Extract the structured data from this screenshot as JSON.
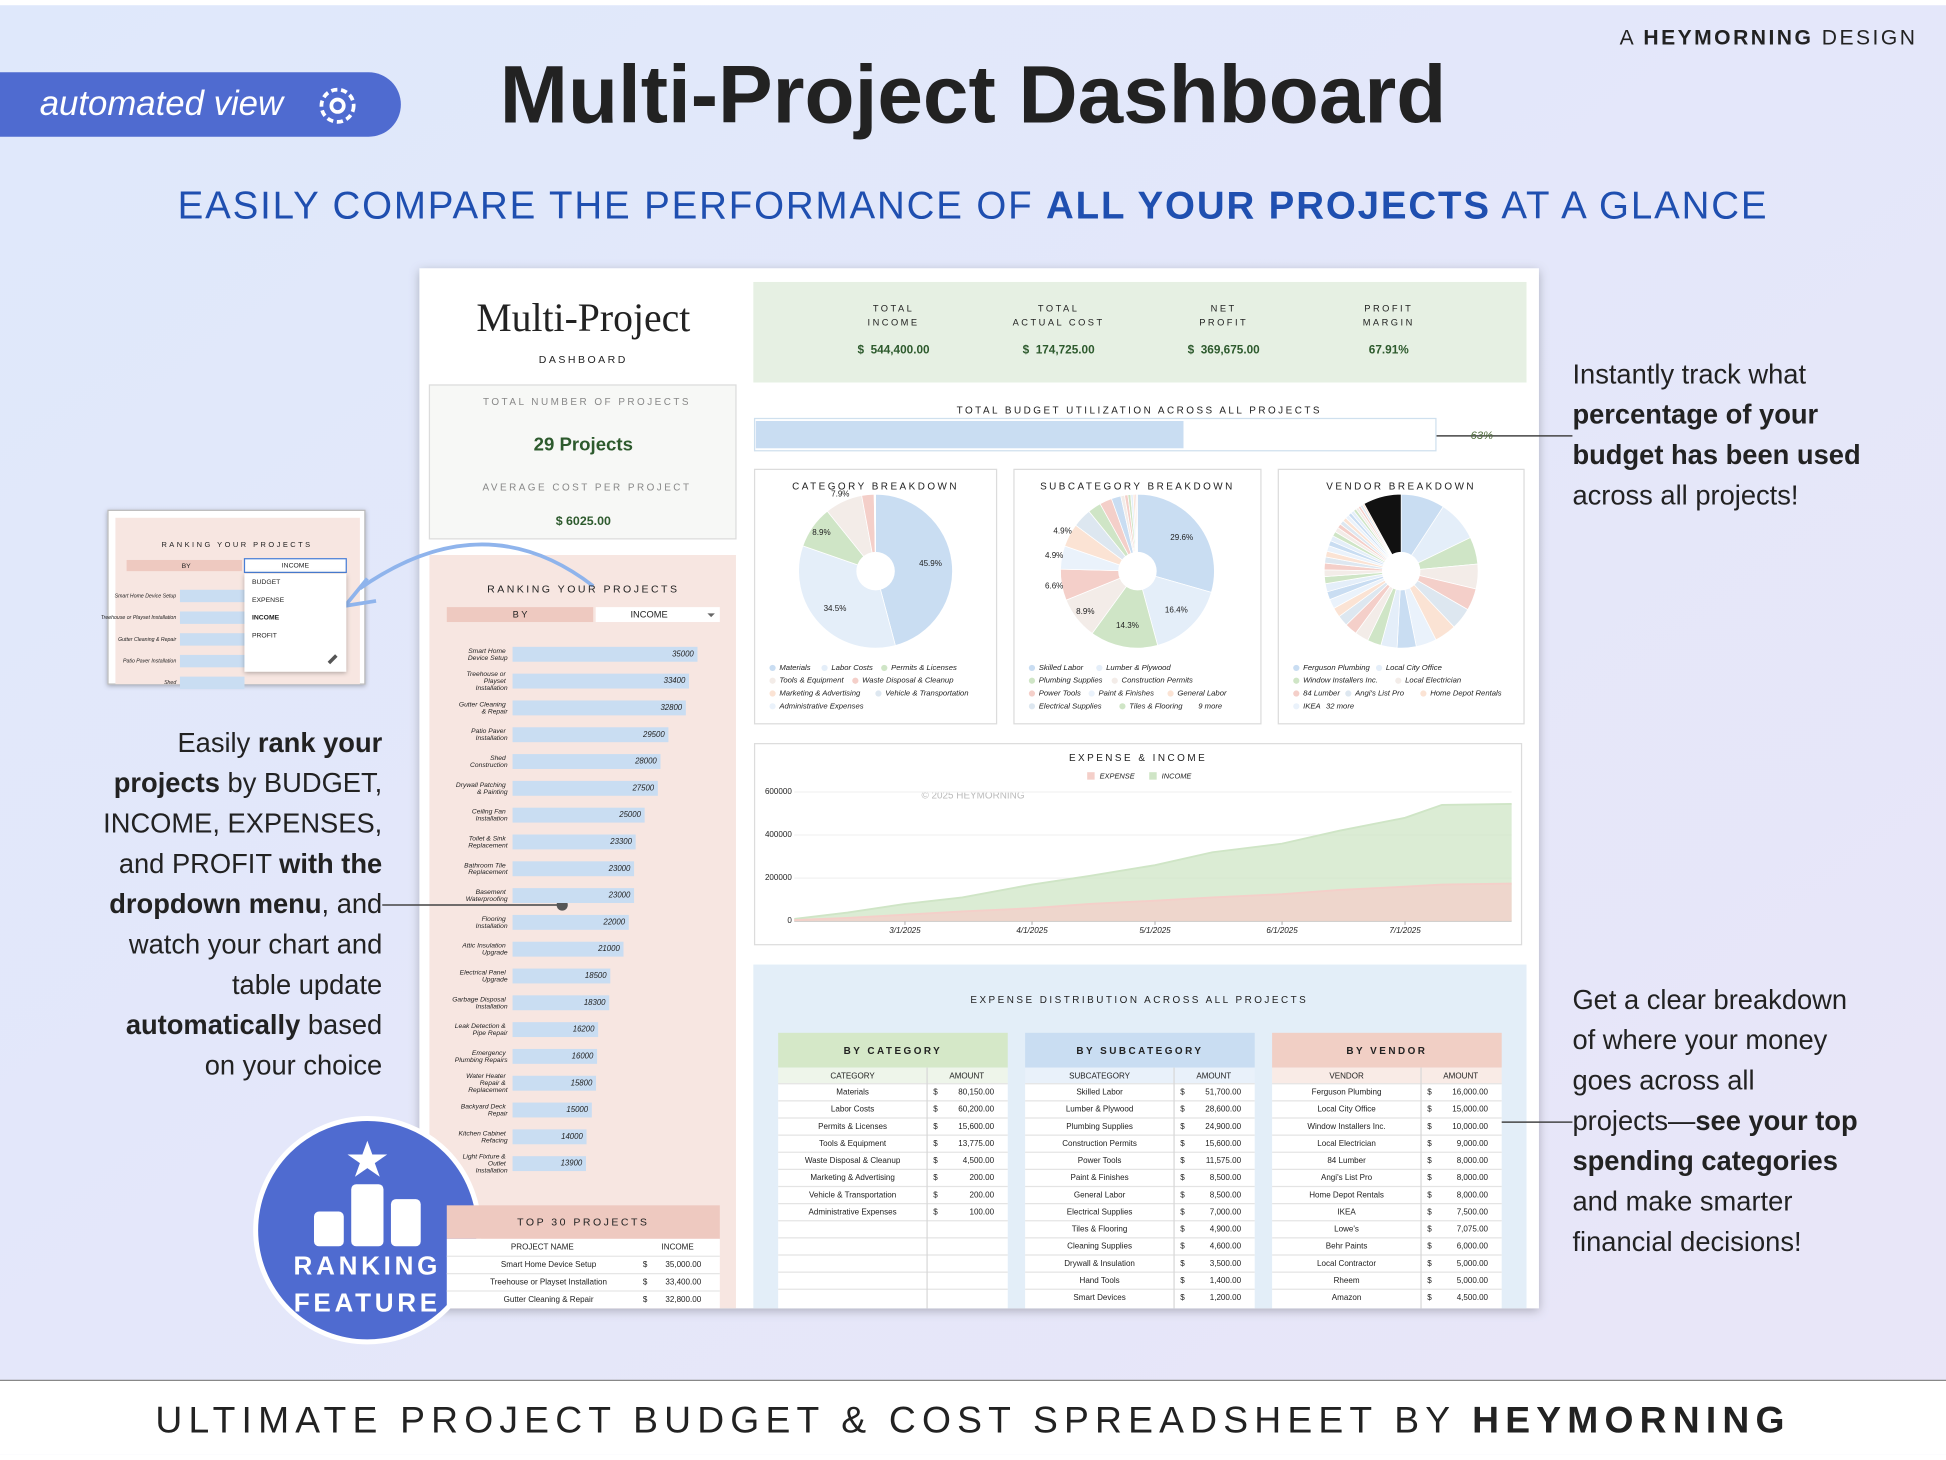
{
  "badge": "automated view",
  "brand": [
    {
      "text": "A "
    },
    {
      "text": "HEYMORNING",
      "bold": true
    },
    {
      "text": " DESIGN"
    }
  ],
  "title": "Multi-Project Dashboard",
  "subtitle": [
    {
      "text": "EASILY COMPARE THE PERFORMANCE OF "
    },
    {
      "text": "ALL YOUR PROJECTS",
      "bold": true
    },
    {
      "text": " AT A GLANCE"
    }
  ],
  "footer": [
    {
      "text": "ULTIMATE PROJECT BUDGET & COST SPREADSHEET BY "
    },
    {
      "text": "HEYMORNING",
      "bold": true
    }
  ],
  "callout_left": [
    [
      {
        "text": "Easily "
      },
      {
        "text": "rank your",
        "bold": true
      }
    ],
    [
      {
        "text": "projects",
        "bold": true
      },
      {
        "text": " by BUDGET,"
      }
    ],
    [
      {
        "text": "INCOME, EXPENSES,"
      }
    ],
    [
      {
        "text": "and PROFIT "
      },
      {
        "text": "with the",
        "bold": true
      }
    ],
    [
      {
        "text": "dropdown menu",
        "bold": true
      },
      {
        "text": ", and"
      }
    ],
    [
      {
        "text": "watch your chart and"
      }
    ],
    [
      {
        "text": "table update"
      }
    ],
    [
      {
        "text": "automatically",
        "bold": true
      },
      {
        "text": " based"
      }
    ],
    [
      {
        "text": "on your choice"
      }
    ]
  ],
  "callout_right_top": [
    [
      {
        "text": "Instantly track what"
      }
    ],
    [
      {
        "text": "percentage of your",
        "bold": true
      }
    ],
    [
      {
        "text": "budget has been used",
        "bold": true
      }
    ],
    [
      {
        "text": "across all projects!"
      }
    ]
  ],
  "callout_right_bottom": [
    [
      {
        "text": "Get a clear breakdown"
      }
    ],
    [
      {
        "text": "of where your money"
      }
    ],
    [
      {
        "text": "goes across all"
      }
    ],
    [
      {
        "text": "projects—"
      },
      {
        "text": "see your top",
        "bold": true
      }
    ],
    [
      {
        "text": "spending categories",
        "bold": true
      }
    ],
    [
      {
        "text": "and make smarter"
      }
    ],
    [
      {
        "text": "financial decisions!"
      }
    ]
  ],
  "ranking_badge": [
    "RANKING",
    "FEATURE"
  ],
  "inset": {
    "title": "RANKING YOUR PROJECTS",
    "by_label": "BY",
    "selected": "INCOME",
    "options": [
      "BUDGET",
      "EXPENSE",
      "INCOME",
      "PROFIT"
    ],
    "projects": [
      "Smart Home Device Setup",
      "Treehouse or Playset Installation",
      "Gutter Cleaning & Repair",
      "Patio Paver Installation",
      "Shed"
    ]
  },
  "dashboard": {
    "title": "Multi-Project",
    "subtitle": "DASHBOARD",
    "project_count": {
      "label": "TOTAL NUMBER OF PROJECTS",
      "value": "29 Projects"
    },
    "average_cost": {
      "label": "AVERAGE COST PER PROJECT",
      "value": "$ 6025.00"
    },
    "kpis": [
      {
        "label": [
          "TOTAL",
          "INCOME"
        ],
        "value": "$  544,400.00"
      },
      {
        "label": [
          "TOTAL",
          "ACTUAL COST"
        ],
        "value": "$  174,725.00"
      },
      {
        "label": [
          "NET",
          "PROFIT"
        ],
        "value": "$  369,675.00"
      },
      {
        "label": [
          "PROFIT",
          "MARGIN"
        ],
        "value": "67.91%"
      }
    ],
    "budget_utilization": {
      "title": "TOTAL BUDGET UTILIZATION ACROSS ALL PROJECTS",
      "value": 63,
      "value_label": "63%",
      "xlim": [
        0,
        100
      ],
      "color": "#c9ddf2"
    }
  },
  "ranking_chart": {
    "type": "bar",
    "orientation": "horizontal",
    "title": "RANKING YOUR PROJECTS",
    "by_label": "BY",
    "dropdown": "INCOME",
    "color": "#c9ddf2",
    "categories": [
      "Smart Home Device Setup",
      "Treehouse or Playset Installation",
      "Gutter Cleaning & Repair",
      "Patio Paver Installation",
      "Shed Construction",
      "Drywall Patching & Painting",
      "Ceiling Fan Installation",
      "Toilet & Sink Replacement",
      "Bathroom Tile Replacement",
      "Basement Waterproofing",
      "Flooring Installation",
      "Attic Insulation Upgrade",
      "Electrical Panel Upgrade",
      "Garbage Disposal Installation",
      "Leak Detection & Pipe Repair",
      "Emergency Plumbing Repairs",
      "Water Heater Repair & Replacement",
      "Backyard Deck Repair",
      "Kitchen Cabinet Refacing",
      "Light Fixture & Outlet Installation"
    ],
    "values": [
      35000,
      33400,
      32800,
      29500,
      28000,
      27500,
      25000,
      23300,
      23000,
      23000,
      22000,
      21000,
      18500,
      18300,
      16200,
      16000,
      15800,
      15000,
      14000,
      13900
    ]
  },
  "top_projects": {
    "title": "TOP 30 PROJECTS",
    "columns": [
      "PROJECT NAME",
      "INCOME"
    ],
    "currency": "$",
    "rows": [
      [
        "Smart Home Device Setup",
        "35,000.00"
      ],
      [
        "Treehouse or Playset Installation",
        "33,400.00"
      ],
      [
        "Gutter Cleaning & Repair",
        "32,800.00"
      ]
    ]
  },
  "pies": [
    {
      "type": "pie",
      "title": "CATEGORY BREAKDOWN",
      "categories": [
        "Materials",
        "Labor Costs",
        "Permits & Licenses",
        "Tools & Equipment",
        "Waste Disposal & Cleanup",
        "Marketing & Advertising",
        "Vehicle & Transportation",
        "Administrative Expenses"
      ],
      "values": [
        45.9,
        34.5,
        8.9,
        7.9,
        2.6,
        0.1,
        0.1,
        0.1
      ],
      "value_labels": [
        "45.9%",
        "34.5%",
        "8.9%",
        "7.9%",
        null,
        null,
        null,
        null
      ],
      "colors": [
        "#c9ddf2",
        "#e4eef9",
        "#cfe5c6",
        "#f3ece8",
        "#f4cfc9",
        "#fbe3d4",
        "#dde7f0",
        "#eaf2fb"
      ]
    },
    {
      "type": "pie",
      "title": "SUBCATEGORY BREAKDOWN",
      "categories": [
        "Skilled Labor",
        "Lumber & Plywood",
        "Plumbing Supplies",
        "Construction Permits",
        "Power Tools",
        "Paint & Finishes",
        "General Labor",
        "Electrical Supplies",
        "Tiles & Flooring",
        null,
        null,
        null,
        null,
        null,
        null,
        null,
        null,
        null
      ],
      "values": [
        29.6,
        16.4,
        14.3,
        8.9,
        6.6,
        4.9,
        4.9,
        4.0,
        2.8,
        2.6,
        2.0,
        0.8,
        0.7,
        0.6,
        0.5,
        0.4,
        0.3,
        0.2
      ],
      "value_labels": [
        "29.6%",
        "16.4%",
        "14.3%",
        "8.9%",
        "6.6%",
        "4.9%",
        "4.9%",
        null,
        null,
        null,
        null,
        null,
        null,
        null,
        null,
        null,
        null,
        null
      ],
      "colors": [
        "#c9ddf2",
        "#e4eef9",
        "#cfe5c6",
        "#f3ece8",
        "#f4cfc9",
        "#eaf2fb",
        "#fbe3d4",
        "#dde7f0",
        "#cfe5c6",
        "#f4cfc9",
        "#c9ddf2",
        "#f3ece8",
        "#f4cfc9",
        "#cfe5c6",
        "#e4eef9",
        "#fbe3d4",
        "#f4cfc9",
        "#dde7f0"
      ],
      "legend_more": "9 more"
    },
    {
      "type": "pie",
      "title": "VENDOR BREAKDOWN",
      "categories": [
        "Ferguson Plumbing",
        "Local City Office",
        "Window Installers Inc.",
        "Local Electrician",
        "84 Lumber",
        "Angi's List Pro",
        "Home Depot Rentals",
        "IKEA",
        null,
        null,
        null,
        null,
        null,
        null,
        null,
        null,
        null,
        null,
        null,
        null,
        null,
        null,
        null,
        null,
        null,
        null,
        null,
        null,
        null,
        null,
        null,
        null,
        null,
        null,
        null,
        null,
        null,
        null,
        null,
        null
      ],
      "values": [
        9.2,
        8.6,
        5.7,
        5.2,
        4.6,
        4.6,
        4.6,
        4.3,
        4.0,
        3.4,
        2.9,
        2.9,
        2.6,
        2.3,
        2.0,
        2.0,
        1.7,
        1.7,
        1.5,
        1.4,
        1.4,
        1.3,
        1.2,
        1.2,
        1.1,
        1.1,
        1.0,
        1.0,
        0.9,
        0.9,
        0.8,
        0.8,
        0.7,
        0.7,
        0.6,
        0.6,
        0.5,
        0.5,
        0.4,
        8.0
      ],
      "value_labels": [
        null,
        null,
        null,
        null,
        null,
        null,
        null,
        null,
        null,
        null,
        null,
        null,
        null,
        null,
        null,
        null,
        null,
        null,
        null,
        null,
        null,
        null,
        null,
        null,
        null,
        null,
        null,
        null,
        null,
        null,
        null,
        null,
        null,
        null,
        null,
        null,
        null,
        null,
        null,
        null
      ],
      "colors": [
        "#c9ddf2",
        "#e4eef9",
        "#cfe5c6",
        "#f3ece8",
        "#f4cfc9",
        "#dde7f0",
        "#fbe3d4",
        "#eaf2fb",
        "#c9ddf2",
        "#e4eef9",
        "#cfe5c6",
        "#f3ece8",
        "#f4cfc9",
        "#dde7f0",
        "#fbe3d4",
        "#eaf2fb",
        "#c9ddf2",
        "#e4eef9",
        "#cfe5c6",
        "#f3ece8",
        "#f4cfc9",
        "#dde7f0",
        "#fbe3d4",
        "#eaf2fb",
        "#c9ddf2",
        "#e4eef9",
        "#cfe5c6",
        "#f3ece8",
        "#f4cfc9",
        "#dde7f0",
        "#fbe3d4",
        "#eaf2fb",
        "#c9ddf2",
        "#e4eef9",
        "#cfe5c6",
        "#f3ece8",
        "#f4cfc9",
        "#dde7f0",
        "#fbe3d4",
        "#111111"
      ],
      "legend_more": "32 more"
    }
  ],
  "line_chart": {
    "type": "area",
    "title": "EXPENSE & INCOME",
    "watermark": "© 2025 HEYMORNING",
    "x": [
      "2/2/2025",
      "2/15/2025",
      "3/1/2025",
      "3/15/2025",
      "4/1/2025",
      "4/15/2025",
      "5/1/2025",
      "5/15/2025",
      "6/1/2025",
      "6/15/2025",
      "7/1/2025",
      "7/10/2025",
      "7/27/2025"
    ],
    "series": [
      {
        "name": "INCOME",
        "color": "#cfe5c6",
        "values": [
          10000,
          40000,
          80000,
          110000,
          170000,
          210000,
          260000,
          320000,
          360000,
          420000,
          480000,
          540000,
          544400
        ]
      },
      {
        "name": "EXPENSE",
        "color": "#f4cfc9",
        "values": [
          5000,
          15000,
          30000,
          45000,
          60000,
          80000,
          95000,
          110000,
          125000,
          145000,
          160000,
          170000,
          174725
        ]
      }
    ],
    "xlim": [
      "2/2/2025",
      "7/27/2025"
    ],
    "xticks": [
      "3/1/2025",
      "4/1/2025",
      "5/1/2025",
      "6/1/2025",
      "7/1/2025"
    ],
    "ylim": [
      0,
      640000
    ],
    "yticks": [
      0,
      200000,
      400000,
      600000
    ]
  },
  "expense_distribution": {
    "title": "EXPENSE DISTRIBUTION ACROSS ALL PROJECTS",
    "tables": [
      {
        "title": "BY CATEGORY",
        "color": "#d5e8c8",
        "tint": "#eef5ea",
        "columns": [
          "CATEGORY",
          "AMOUNT"
        ],
        "currency": "$",
        "rows": [
          [
            "Materials",
            "80,150.00"
          ],
          [
            "Labor Costs",
            "60,200.00"
          ],
          [
            "Permits & Licenses",
            "15,600.00"
          ],
          [
            "Tools & Equipment",
            "13,775.00"
          ],
          [
            "Waste Disposal & Cleanup",
            "4,500.00"
          ],
          [
            "Marketing & Advertising",
            "200.00"
          ],
          [
            "Vehicle & Transportation",
            "200.00"
          ],
          [
            "Administrative Expenses",
            "100.00"
          ]
        ]
      },
      {
        "title": "BY SUBCATEGORY",
        "color": "#c9ddf2",
        "tint": "#e9f1fa",
        "columns": [
          "SUBCATEGORY",
          "AMOUNT"
        ],
        "currency": "$",
        "rows": [
          [
            "Skilled Labor",
            "51,700.00"
          ],
          [
            "Lumber & Plywood",
            "28,600.00"
          ],
          [
            "Plumbing Supplies",
            "24,900.00"
          ],
          [
            "Construction Permits",
            "15,600.00"
          ],
          [
            "Power Tools",
            "11,575.00"
          ],
          [
            "Paint & Finishes",
            "8,500.00"
          ],
          [
            "General Labor",
            "8,500.00"
          ],
          [
            "Electrical Supplies",
            "7,000.00"
          ],
          [
            "Tiles & Flooring",
            "4,900.00"
          ],
          [
            "Cleaning Supplies",
            "4,600.00"
          ],
          [
            "Drywall & Insulation",
            "3,500.00"
          ],
          [
            "Hand Tools",
            "1,400.00"
          ],
          [
            "Smart Devices",
            "1,200.00"
          ]
        ]
      },
      {
        "title": "BY VENDOR",
        "color": "#f1cfc5",
        "tint": "#f9ebe6",
        "columns": [
          "VENDOR",
          "AMOUNT"
        ],
        "currency": "$",
        "rows": [
          [
            "Ferguson Plumbing",
            "16,000.00"
          ],
          [
            "Local City Office",
            "15,000.00"
          ],
          [
            "Window Installers Inc.",
            "10,000.00"
          ],
          [
            "Local Electrician",
            "9,000.00"
          ],
          [
            "84 Lumber",
            "8,000.00"
          ],
          [
            "Angi's List Pro",
            "8,000.00"
          ],
          [
            "Home Depot Rentals",
            "8,000.00"
          ],
          [
            "IKEA",
            "7,500.00"
          ],
          [
            "Lowe's",
            "7,075.00"
          ],
          [
            "Behr Paints",
            "6,000.00"
          ],
          [
            "Local Contractor",
            "5,000.00"
          ],
          [
            "Rheem",
            "5,000.00"
          ],
          [
            "Amazon",
            "4,500.00"
          ]
        ]
      }
    ]
  }
}
